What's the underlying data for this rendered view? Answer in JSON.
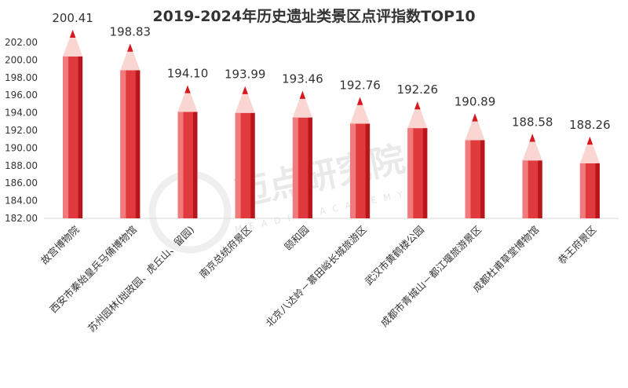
{
  "chart_data": {
    "type": "bar",
    "title": "2019-2024年历史遗址类景区点评指数TOP10",
    "xlabel": "",
    "ylabel": "",
    "ylim": [
      182.0,
      202.0
    ],
    "ytick_step": 2.0,
    "categories": [
      "故宫博物院",
      "西安市秦始皇兵马俑博物馆",
      "苏州园林(拙政园、虎丘山、留园)",
      "南京总统府景区",
      "颐和园",
      "北京八达岭－慕田峪长城旅游区",
      "武汉市黄鹤楼公园",
      "成都市青城山－都江堰旅游景区",
      "成都杜甫草堂博物馆",
      "恭王府景区"
    ],
    "values": [
      200.41,
      198.83,
      194.1,
      193.99,
      193.46,
      192.76,
      192.26,
      190.89,
      188.58,
      188.26
    ],
    "value_labels": [
      "200.41",
      "198.83",
      "194.10",
      "193.99",
      "193.46",
      "192.76",
      "192.26",
      "190.89",
      "188.58",
      "188.26"
    ],
    "bar_style": "pencil",
    "colors": {
      "bar_main": "#e03a3e",
      "bar_light": "#f07a7c",
      "bar_dark": "#b8161c",
      "tip_wood": "#f9d6d1",
      "tip_lead": "#d7191f",
      "axis": "#d9d9d9"
    },
    "grid": false,
    "legend": "none"
  },
  "watermark": {
    "text": "迈点研究院",
    "subtext": "MEADIN ACADEMY"
  }
}
